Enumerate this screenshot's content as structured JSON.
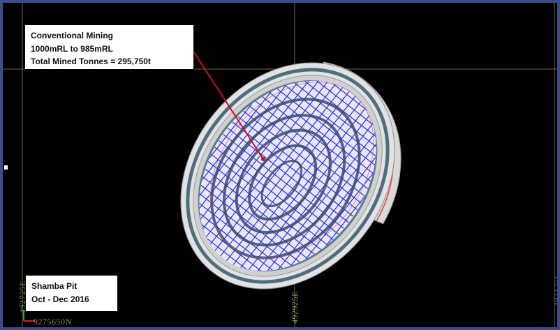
{
  "annotation": {
    "line1": "Conventional Mining",
    "line2": "1000mRL to 985mRL",
    "line3": "Total Mined Tonnes = 295,750t"
  },
  "pit_label": {
    "line1": "Shamba Pit",
    "line2": "Oct - Dec 2016"
  },
  "grid_labels": {
    "easting_left": "492725E",
    "easting_mid": "492925E",
    "easting_right": "493125E",
    "northing": "9275650N"
  },
  "colors": {
    "background": "#000000",
    "frame_border": "#3c4d89",
    "block_grid": "#2a2aee",
    "pit_wall": "#d8d8d8",
    "bench": "#4a6a7a",
    "pointer_line": "#cc1111",
    "grid_line": "#6b6b3b"
  }
}
